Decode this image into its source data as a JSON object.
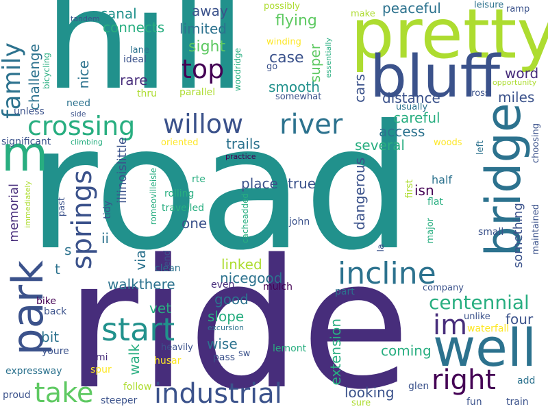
{
  "words": {
    "road": "road",
    "ride": "ride",
    "hill": "hill",
    "pretty": "pretty",
    "bluff": "bluff",
    "park": "park",
    "bridge": "bridge",
    "well": "well",
    "m": "m",
    "willow": "willow",
    "river": "river",
    "crossing": "crossing",
    "top": "top",
    "incline": "incline",
    "start": "start",
    "industrial": "industrial",
    "take": "take",
    "right": "right",
    "im": "im",
    "springs": "springs",
    "family": "family",
    "centennial": "centennial",
    "away": "away",
    "canal": "canal",
    "connects": "connects",
    "limited": "limited",
    "sight": "sight",
    "case": "case",
    "flying": "flying",
    "super": "super",
    "peaceful": "peaceful",
    "smooth": "smooth",
    "cars": "cars",
    "distance": "distance",
    "miles": "miles",
    "word": "word",
    "rare": "rare",
    "nice": "nice",
    "challenge": "challenge",
    "careful": "careful",
    "access": "access",
    "trails": "trails",
    "several": "several",
    "place": "place",
    "true": "true",
    "isn": "isn",
    "dangerous": "dangerous",
    "one": "one",
    "memorial": "memorial",
    "illinoislittle": "illinoislittle",
    "ii": "ii",
    "s": "s",
    "t": "t",
    "via": "via",
    "linked": "linked",
    "nicegood": "nicegood",
    "walkthere": "walkthere",
    "good": "good",
    "slope": "slope",
    "vet": "vet",
    "four": "four",
    "something": "something",
    "half": "half",
    "bit": "bit",
    "wise": "wise",
    "walk": "walk",
    "extension": "extension",
    "coming": "coming",
    "looking": "looking",
    "youre": "youre",
    "expressway": "expressway",
    "proud": "proud",
    "pass": "pass",
    "lemont": "lemont",
    "husar": "husar",
    "spur": "spur",
    "follow": "follow",
    "steeper": "steeper",
    "sure": "sure",
    "glen": "glen",
    "fun": "fun",
    "train": "train",
    "add": "add",
    "waterfall": "waterfall",
    "unlike": "unlike",
    "company": "company",
    "mi": "mi",
    "heavily": "heavily",
    "sw": "sw",
    "excursion": "excursion",
    "bike": "bike",
    "back": "back",
    "mulch": "mulch",
    "even": "even",
    "part": "part",
    "clean": "clean",
    "end": "end",
    "la": "la",
    "john": "john",
    "major": "major",
    "flat": "flat",
    "first": "first",
    "small": "small",
    "maintained": "maintained",
    "choosing": "choosing",
    "left": "left",
    "woods": "woods",
    "usually": "usually",
    "cross": "cross",
    "opportunity": "opportunity",
    "ramp": "ramp",
    "leisure": "leisure",
    "make": "make",
    "possibly": "possibly",
    "winding": "winding",
    "go": "go",
    "essentially": "essentially",
    "somewhat": "somewhat",
    "woodridge": "woodridge",
    "parallel": "parallel",
    "thru": "thru",
    "ideal": "ideal",
    "lane": "lane",
    "tandem": "tandem",
    "bicycling": "bicycling",
    "need": "need",
    "unless": "unless",
    "side": "side",
    "significant": "significant",
    "climbing": "climbing",
    "oriented": "oriented",
    "practice": "practice",
    "rte": "rte",
    "rolling": "rolling",
    "travelled": "travelled",
    "romeovilleisle": "romeovilleisle",
    "tidy": "tidy",
    "past": "past",
    "immediately": "immediately",
    "cacheadded": "cacheadded"
  },
  "colors": {
    "dark_purple": "#440154",
    "indigo": "#472d7b",
    "blue_purple": "#3b528b",
    "steel_blue": "#2c728e",
    "teal": "#21918c",
    "sea_green": "#28ae80",
    "green": "#5ec962",
    "lime": "#addc30",
    "yellow": "#fde725"
  }
}
